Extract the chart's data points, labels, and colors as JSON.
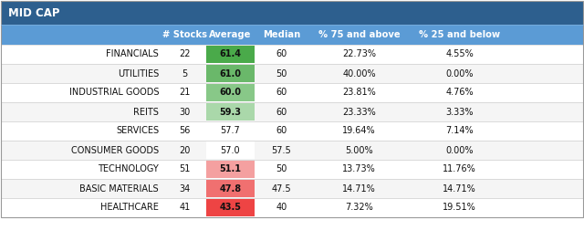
{
  "title": "MID CAP",
  "title_bg": "#2d5f8e",
  "title_color": "#ffffff",
  "header_bg": "#5b9bd5",
  "header_color": "#ffffff",
  "rows": [
    [
      "FINANCIALS",
      "22",
      "61.4",
      "60",
      "22.73%",
      "4.55%"
    ],
    [
      "UTILITIES",
      "5",
      "61.0",
      "50",
      "40.00%",
      "0.00%"
    ],
    [
      "INDUSTRIAL GOODS",
      "21",
      "60.0",
      "60",
      "23.81%",
      "4.76%"
    ],
    [
      "REITS",
      "30",
      "59.3",
      "60",
      "23.33%",
      "3.33%"
    ],
    [
      "SERVICES",
      "56",
      "57.7",
      "60",
      "19.64%",
      "7.14%"
    ],
    [
      "CONSUMER GOODS",
      "20",
      "57.0",
      "57.5",
      "5.00%",
      "0.00%"
    ],
    [
      "TECHNOLOGY",
      "51",
      "51.1",
      "50",
      "13.73%",
      "11.76%"
    ],
    [
      "BASIC MATERIALS",
      "34",
      "47.8",
      "47.5",
      "14.71%",
      "14.71%"
    ],
    [
      "HEALTHCARE",
      "41",
      "43.5",
      "40",
      "7.32%",
      "19.51%"
    ]
  ],
  "avg_colors": [
    "#4aaa4a",
    "#6ab86a",
    "#88c888",
    "#aad8aa",
    "#ffffff",
    "#ffffff",
    "#f4a0a0",
    "#f07070",
    "#ee4444"
  ],
  "col_headers": [
    "# Stocks",
    "Average",
    "Median",
    "% 75 and above",
    "% 25 and below"
  ],
  "text_color": "#111111",
  "grid_color": "#cccccc",
  "font_family": "DejaVu Sans"
}
